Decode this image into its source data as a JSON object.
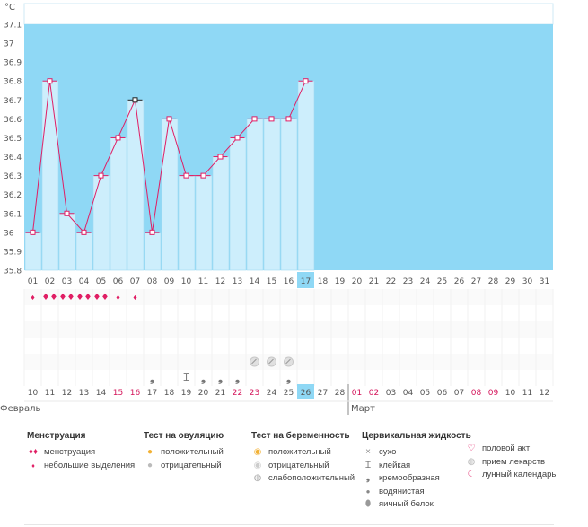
{
  "chart_data": {
    "type": "line",
    "unit_label": "°C",
    "ylim": [
      35.8,
      37.1
    ],
    "yticks": [
      "37.1",
      "37",
      "36.9",
      "36.8",
      "36.7",
      "36.6",
      "36.5",
      "36.4",
      "36.3",
      "36.2",
      "36.1",
      "36",
      "35.9",
      "35.8"
    ],
    "cycle_days": [
      "01",
      "02",
      "03",
      "04",
      "05",
      "06",
      "07",
      "08",
      "09",
      "10",
      "11",
      "12",
      "13",
      "14",
      "15",
      "16",
      "17",
      "18",
      "19",
      "20",
      "21",
      "22",
      "23",
      "24",
      "25",
      "26",
      "27",
      "28",
      "29",
      "30",
      "31"
    ],
    "current_cycle_day": "17",
    "temperatures": [
      36.0,
      36.8,
      36.1,
      36.0,
      36.3,
      36.5,
      36.7,
      36.0,
      36.6,
      36.3,
      36.3,
      36.4,
      36.5,
      36.6,
      36.6,
      36.6,
      36.8
    ],
    "highlighted_point_day": "07",
    "calendar_dates": [
      "10",
      "11",
      "12",
      "13",
      "14",
      "15",
      "16",
      "17",
      "18",
      "19",
      "20",
      "21",
      "22",
      "23",
      "24",
      "25",
      "26",
      "27",
      "28",
      "01",
      "02",
      "03",
      "04",
      "05",
      "06",
      "07",
      "08",
      "09",
      "10",
      "11",
      "12"
    ],
    "weekend_date_indices": [
      5,
      6,
      12,
      13,
      19,
      20,
      26,
      27
    ],
    "today_date_index": 16,
    "months": [
      {
        "label": "Февраль",
        "start_index": 0
      },
      {
        "label": "Март",
        "start_index": 19
      }
    ],
    "menstruation_rows": {
      "heavy_day_indices": [
        1,
        2,
        3,
        4
      ],
      "light_day_indices": [
        0,
        5,
        6
      ]
    },
    "pregnancy_test_weak_positive_day_indices": [
      13,
      14,
      15
    ],
    "cervical_fluid": {
      "creamy_day_indices": [
        7,
        10,
        11,
        12,
        15
      ],
      "sticky_day_indices": [
        9
      ]
    }
  },
  "legend": {
    "menstruation": {
      "title": "Менструация",
      "items": [
        "менструация",
        "небольшие выделения"
      ]
    },
    "ovulation_test": {
      "title": "Тест на овуляцию",
      "items": [
        "положительный",
        "отрицательный"
      ]
    },
    "pregnancy_test": {
      "title": "Тест на беременность",
      "items": [
        "положительный",
        "отрицательный",
        "слабоположительный"
      ]
    },
    "cervical_fluid": {
      "title": "Цервикальная жидкость",
      "items": [
        "сухо",
        "клейкая",
        "кремообразная",
        "водянистая",
        "яичный белок"
      ]
    },
    "other": {
      "items": [
        "половой акт",
        "прием лекарств",
        "лунный календарь"
      ]
    }
  },
  "colors": {
    "sky": "#8fd8f5",
    "bar": "#cdeefc",
    "bar_edge": "#9fdaf2",
    "line": "#e01e64",
    "today": "#8fd8f5",
    "weekend_text": "#d4145a"
  }
}
